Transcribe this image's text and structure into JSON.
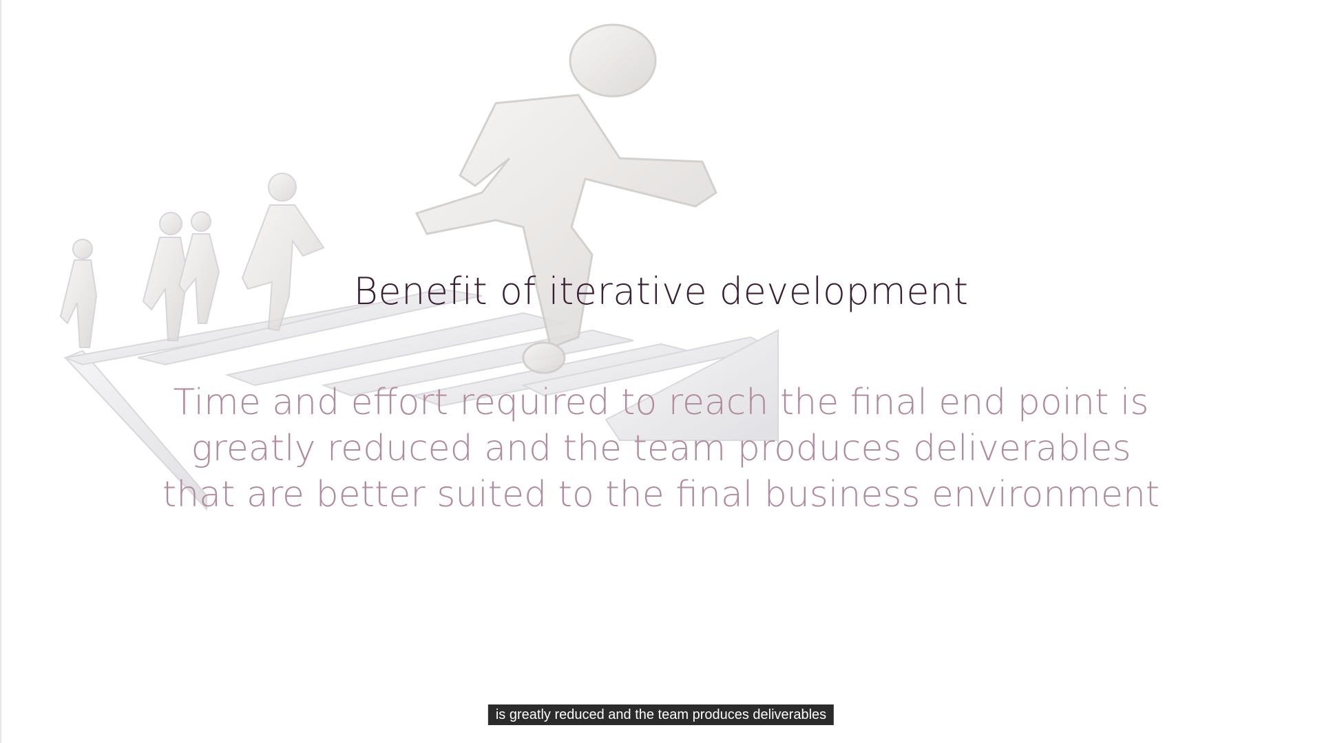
{
  "slide": {
    "title": "Benefit of iterative development",
    "body_lines": [
      "Time and effort required to reach the final end point is",
      "greatly reduced and the team produces deliverables",
      "that are better suited to the final business environment"
    ]
  },
  "caption": {
    "text": "is greatly reduced and the team produces deliverables"
  },
  "colors": {
    "title": "#3a1f34",
    "body": "#b08a9d",
    "caption_bg": "#2b2b2b",
    "caption_text": "#ffffff",
    "illustration": "#e4e4e6"
  }
}
